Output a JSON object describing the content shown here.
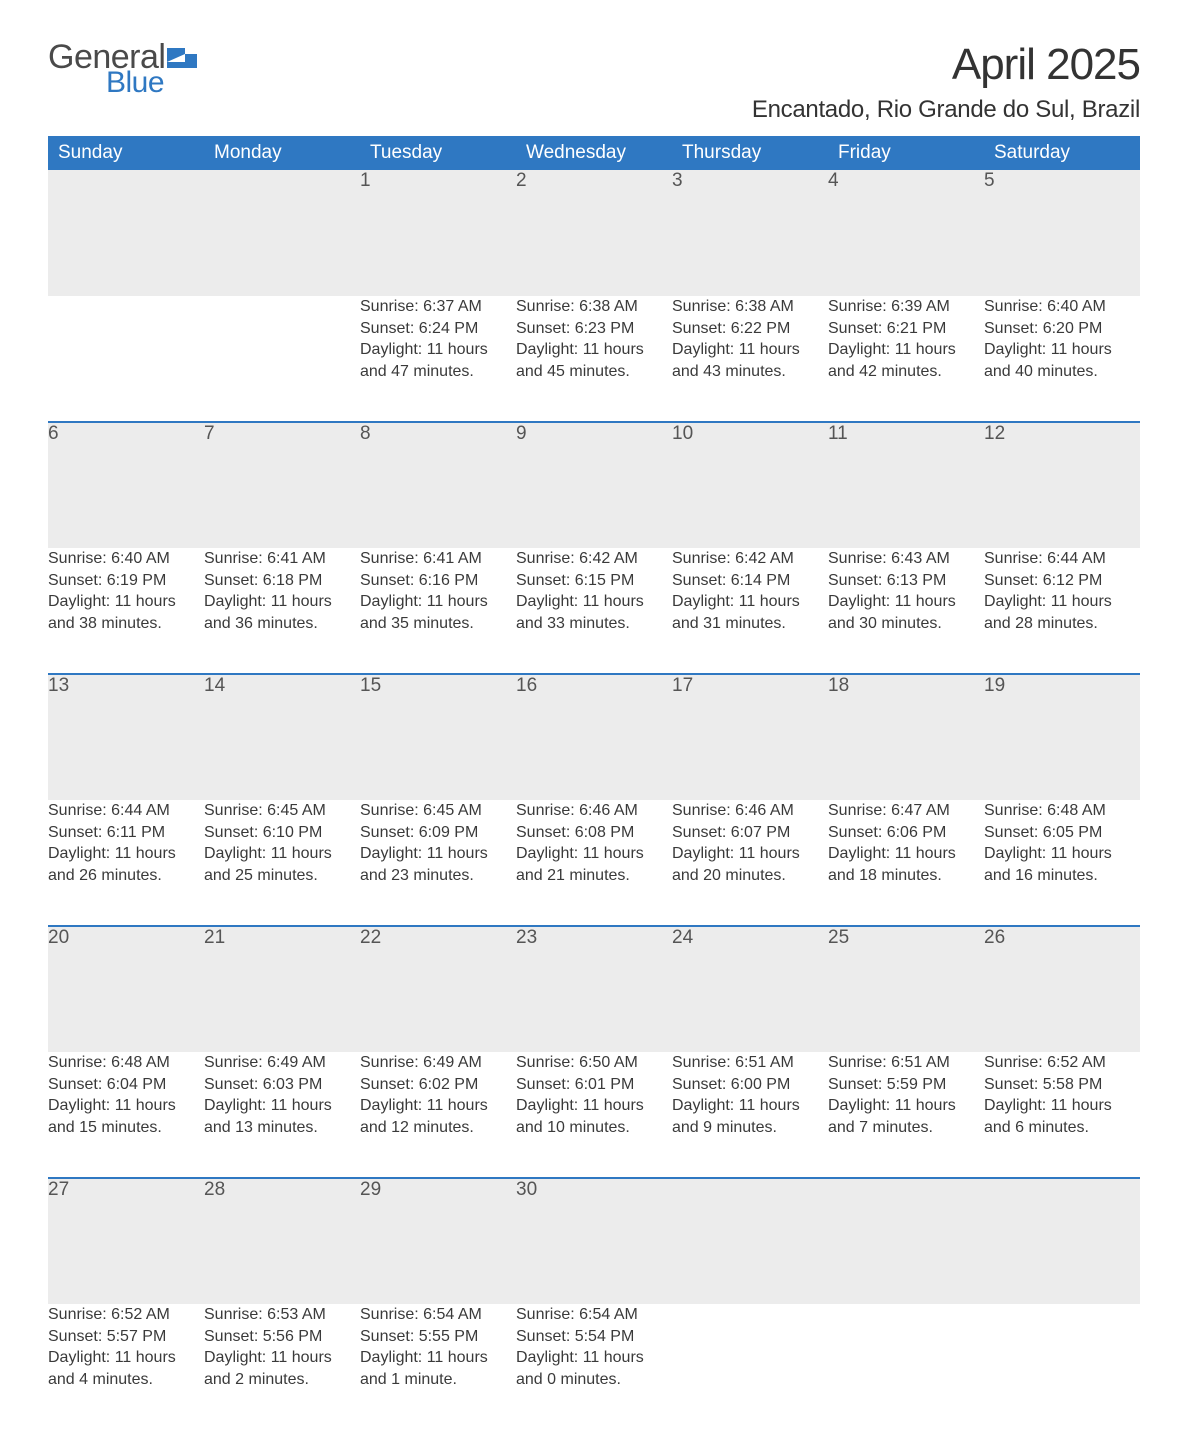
{
  "logo": {
    "general": "General",
    "blue": "Blue"
  },
  "title": "April 2025",
  "location": "Encantado, Rio Grande do Sul, Brazil",
  "colors": {
    "header_bg": "#2f78c2",
    "header_text": "#ffffff",
    "daynum_bg": "#ececec",
    "divider": "#2f78c2",
    "body_text": "#3a3a3a",
    "logo_gray": "#4a4a4a",
    "logo_blue": "#2f78c2",
    "page_bg": "#ffffff"
  },
  "typography": {
    "title_fontsize": 44,
    "location_fontsize": 24,
    "header_fontsize": 19,
    "daynum_fontsize": 19,
    "body_fontsize": 16
  },
  "days_of_week": [
    "Sunday",
    "Monday",
    "Tuesday",
    "Wednesday",
    "Thursday",
    "Friday",
    "Saturday"
  ],
  "weeks": [
    [
      null,
      null,
      {
        "n": "1",
        "sunrise": "Sunrise: 6:37 AM",
        "sunset": "Sunset: 6:24 PM",
        "daylight": "Daylight: 11 hours and 47 minutes."
      },
      {
        "n": "2",
        "sunrise": "Sunrise: 6:38 AM",
        "sunset": "Sunset: 6:23 PM",
        "daylight": "Daylight: 11 hours and 45 minutes."
      },
      {
        "n": "3",
        "sunrise": "Sunrise: 6:38 AM",
        "sunset": "Sunset: 6:22 PM",
        "daylight": "Daylight: 11 hours and 43 minutes."
      },
      {
        "n": "4",
        "sunrise": "Sunrise: 6:39 AM",
        "sunset": "Sunset: 6:21 PM",
        "daylight": "Daylight: 11 hours and 42 minutes."
      },
      {
        "n": "5",
        "sunrise": "Sunrise: 6:40 AM",
        "sunset": "Sunset: 6:20 PM",
        "daylight": "Daylight: 11 hours and 40 minutes."
      }
    ],
    [
      {
        "n": "6",
        "sunrise": "Sunrise: 6:40 AM",
        "sunset": "Sunset: 6:19 PM",
        "daylight": "Daylight: 11 hours and 38 minutes."
      },
      {
        "n": "7",
        "sunrise": "Sunrise: 6:41 AM",
        "sunset": "Sunset: 6:18 PM",
        "daylight": "Daylight: 11 hours and 36 minutes."
      },
      {
        "n": "8",
        "sunrise": "Sunrise: 6:41 AM",
        "sunset": "Sunset: 6:16 PM",
        "daylight": "Daylight: 11 hours and 35 minutes."
      },
      {
        "n": "9",
        "sunrise": "Sunrise: 6:42 AM",
        "sunset": "Sunset: 6:15 PM",
        "daylight": "Daylight: 11 hours and 33 minutes."
      },
      {
        "n": "10",
        "sunrise": "Sunrise: 6:42 AM",
        "sunset": "Sunset: 6:14 PM",
        "daylight": "Daylight: 11 hours and 31 minutes."
      },
      {
        "n": "11",
        "sunrise": "Sunrise: 6:43 AM",
        "sunset": "Sunset: 6:13 PM",
        "daylight": "Daylight: 11 hours and 30 minutes."
      },
      {
        "n": "12",
        "sunrise": "Sunrise: 6:44 AM",
        "sunset": "Sunset: 6:12 PM",
        "daylight": "Daylight: 11 hours and 28 minutes."
      }
    ],
    [
      {
        "n": "13",
        "sunrise": "Sunrise: 6:44 AM",
        "sunset": "Sunset: 6:11 PM",
        "daylight": "Daylight: 11 hours and 26 minutes."
      },
      {
        "n": "14",
        "sunrise": "Sunrise: 6:45 AM",
        "sunset": "Sunset: 6:10 PM",
        "daylight": "Daylight: 11 hours and 25 minutes."
      },
      {
        "n": "15",
        "sunrise": "Sunrise: 6:45 AM",
        "sunset": "Sunset: 6:09 PM",
        "daylight": "Daylight: 11 hours and 23 minutes."
      },
      {
        "n": "16",
        "sunrise": "Sunrise: 6:46 AM",
        "sunset": "Sunset: 6:08 PM",
        "daylight": "Daylight: 11 hours and 21 minutes."
      },
      {
        "n": "17",
        "sunrise": "Sunrise: 6:46 AM",
        "sunset": "Sunset: 6:07 PM",
        "daylight": "Daylight: 11 hours and 20 minutes."
      },
      {
        "n": "18",
        "sunrise": "Sunrise: 6:47 AM",
        "sunset": "Sunset: 6:06 PM",
        "daylight": "Daylight: 11 hours and 18 minutes."
      },
      {
        "n": "19",
        "sunrise": "Sunrise: 6:48 AM",
        "sunset": "Sunset: 6:05 PM",
        "daylight": "Daylight: 11 hours and 16 minutes."
      }
    ],
    [
      {
        "n": "20",
        "sunrise": "Sunrise: 6:48 AM",
        "sunset": "Sunset: 6:04 PM",
        "daylight": "Daylight: 11 hours and 15 minutes."
      },
      {
        "n": "21",
        "sunrise": "Sunrise: 6:49 AM",
        "sunset": "Sunset: 6:03 PM",
        "daylight": "Daylight: 11 hours and 13 minutes."
      },
      {
        "n": "22",
        "sunrise": "Sunrise: 6:49 AM",
        "sunset": "Sunset: 6:02 PM",
        "daylight": "Daylight: 11 hours and 12 minutes."
      },
      {
        "n": "23",
        "sunrise": "Sunrise: 6:50 AM",
        "sunset": "Sunset: 6:01 PM",
        "daylight": "Daylight: 11 hours and 10 minutes."
      },
      {
        "n": "24",
        "sunrise": "Sunrise: 6:51 AM",
        "sunset": "Sunset: 6:00 PM",
        "daylight": "Daylight: 11 hours and 9 minutes."
      },
      {
        "n": "25",
        "sunrise": "Sunrise: 6:51 AM",
        "sunset": "Sunset: 5:59 PM",
        "daylight": "Daylight: 11 hours and 7 minutes."
      },
      {
        "n": "26",
        "sunrise": "Sunrise: 6:52 AM",
        "sunset": "Sunset: 5:58 PM",
        "daylight": "Daylight: 11 hours and 6 minutes."
      }
    ],
    [
      {
        "n": "27",
        "sunrise": "Sunrise: 6:52 AM",
        "sunset": "Sunset: 5:57 PM",
        "daylight": "Daylight: 11 hours and 4 minutes."
      },
      {
        "n": "28",
        "sunrise": "Sunrise: 6:53 AM",
        "sunset": "Sunset: 5:56 PM",
        "daylight": "Daylight: 11 hours and 2 minutes."
      },
      {
        "n": "29",
        "sunrise": "Sunrise: 6:54 AM",
        "sunset": "Sunset: 5:55 PM",
        "daylight": "Daylight: 11 hours and 1 minute."
      },
      {
        "n": "30",
        "sunrise": "Sunrise: 6:54 AM",
        "sunset": "Sunset: 5:54 PM",
        "daylight": "Daylight: 11 hours and 0 minutes."
      },
      null,
      null,
      null
    ]
  ]
}
